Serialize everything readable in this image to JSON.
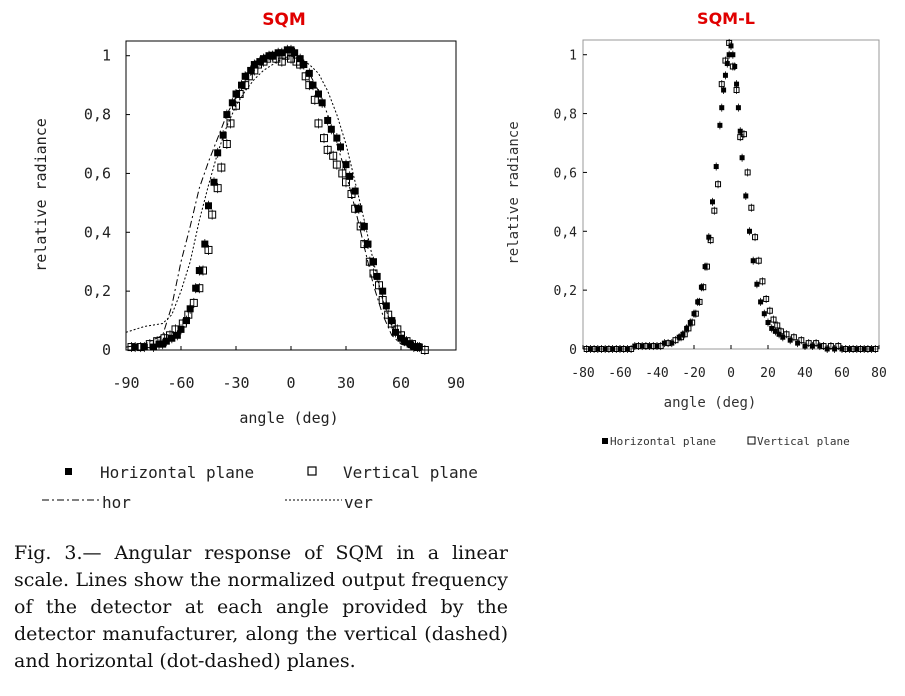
{
  "chart_data": [
    {
      "type": "scatter",
      "title": "SQM",
      "title_color": "#e00000",
      "xlabel": "angle (deg)",
      "ylabel": "relative radiance",
      "xlim": [
        -90,
        90
      ],
      "ylim": [
        0,
        1.05
      ],
      "grid": false,
      "xticks": [
        -90,
        -60,
        -30,
        0,
        30,
        60,
        90
      ],
      "xtick_labels": [
        "-90",
        "-60",
        "-30",
        "0",
        "30",
        "60",
        "90"
      ],
      "yticks": [
        0,
        0.2,
        0.4,
        0.6,
        0.8,
        1
      ],
      "ytick_labels": [
        "0",
        "0,2",
        "0,4",
        "0,6",
        "0,8",
        "1"
      ],
      "legend": [
        {
          "label": "Horizontal plane",
          "marker": "filled-square"
        },
        {
          "label": "Vertical plane",
          "marker": "open-square"
        },
        {
          "label": "hor",
          "line": "dot-dashed"
        },
        {
          "label": "ver",
          "line": "dotted"
        }
      ],
      "series": [
        {
          "name": "Horizontal plane",
          "marker": "filled-square",
          "x": [
            -85,
            -80,
            -75,
            -72,
            -70,
            -68,
            -65,
            -62,
            -60,
            -57,
            -55,
            -52,
            -50,
            -47,
            -45,
            -42,
            -40,
            -37,
            -35,
            -32,
            -30,
            -27,
            -25,
            -22,
            -20,
            -17,
            -15,
            -12,
            -10,
            -7,
            -5,
            -2,
            0,
            2,
            5,
            7,
            10,
            12,
            15,
            17,
            20,
            22,
            25,
            27,
            30,
            32,
            35,
            37,
            40,
            42,
            45,
            47,
            50,
            52,
            55,
            57,
            60,
            62,
            65,
            67,
            70
          ],
          "y": [
            0.01,
            0.01,
            0.01,
            0.02,
            0.02,
            0.03,
            0.04,
            0.05,
            0.07,
            0.1,
            0.14,
            0.21,
            0.27,
            0.36,
            0.49,
            0.57,
            0.67,
            0.73,
            0.8,
            0.84,
            0.87,
            0.9,
            0.93,
            0.95,
            0.97,
            0.98,
            0.99,
            1.0,
            1.0,
            1.01,
            1.01,
            1.02,
            1.02,
            1.01,
            0.99,
            0.97,
            0.94,
            0.9,
            0.87,
            0.84,
            0.78,
            0.75,
            0.72,
            0.69,
            0.63,
            0.59,
            0.54,
            0.48,
            0.42,
            0.36,
            0.3,
            0.25,
            0.2,
            0.15,
            0.1,
            0.06,
            0.04,
            0.03,
            0.02,
            0.01,
            0.01
          ]
        },
        {
          "name": "Vertical plane",
          "marker": "open-square",
          "x": [
            -87,
            -82,
            -77,
            -73,
            -69,
            -66,
            -63,
            -59,
            -56,
            -53,
            -50,
            -48,
            -45,
            -43,
            -40,
            -38,
            -35,
            -33,
            -30,
            -28,
            -25,
            -23,
            -20,
            -18,
            -15,
            -13,
            -10,
            -8,
            -5,
            -3,
            0,
            3,
            5,
            8,
            10,
            13,
            15,
            18,
            20,
            23,
            25,
            28,
            30,
            33,
            35,
            38,
            40,
            43,
            45,
            48,
            50,
            53,
            55,
            58,
            60,
            63,
            66,
            69,
            73
          ],
          "y": [
            0.01,
            0.01,
            0.02,
            0.03,
            0.04,
            0.05,
            0.07,
            0.09,
            0.12,
            0.16,
            0.21,
            0.27,
            0.34,
            0.46,
            0.55,
            0.62,
            0.7,
            0.77,
            0.83,
            0.87,
            0.9,
            0.93,
            0.95,
            0.97,
            0.98,
            0.99,
            1.0,
            0.99,
            0.98,
            1.0,
            0.99,
            0.98,
            0.97,
            0.93,
            0.9,
            0.85,
            0.77,
            0.72,
            0.68,
            0.66,
            0.63,
            0.6,
            0.57,
            0.53,
            0.48,
            0.42,
            0.36,
            0.3,
            0.26,
            0.22,
            0.17,
            0.12,
            0.09,
            0.07,
            0.05,
            0.03,
            0.02,
            0.01,
            0.0
          ]
        },
        {
          "name": "hor",
          "line": "dot-dashed",
          "x": [
            -90,
            -80,
            -70,
            -65,
            -60,
            -55,
            -50,
            -45,
            -40,
            -35,
            -30,
            -25,
            -20,
            -15,
            -10,
            -5,
            0,
            5,
            10,
            15,
            20,
            25,
            30,
            35,
            40,
            45,
            50,
            55,
            60,
            65,
            70,
            75
          ],
          "y": [
            0.01,
            0.02,
            0.05,
            0.15,
            0.3,
            0.42,
            0.55,
            0.64,
            0.72,
            0.8,
            0.86,
            0.91,
            0.95,
            0.98,
            1.0,
            1.0,
            1.0,
            0.98,
            0.94,
            0.88,
            0.8,
            0.7,
            0.6,
            0.48,
            0.35,
            0.22,
            0.12,
            0.05,
            0.02,
            0.01,
            0.0,
            0.0
          ]
        },
        {
          "name": "ver",
          "line": "dotted",
          "x": [
            -90,
            -80,
            -70,
            -65,
            -60,
            -55,
            -50,
            -45,
            -40,
            -35,
            -30,
            -25,
            -20,
            -15,
            -10,
            -5,
            0,
            5,
            10,
            15,
            20,
            25,
            30,
            35,
            40,
            45,
            50,
            55,
            60,
            65,
            70,
            75
          ],
          "y": [
            0.06,
            0.08,
            0.09,
            0.12,
            0.2,
            0.3,
            0.44,
            0.56,
            0.67,
            0.76,
            0.83,
            0.88,
            0.92,
            0.95,
            0.97,
            0.99,
            1.0,
            0.99,
            0.97,
            0.94,
            0.88,
            0.8,
            0.7,
            0.57,
            0.44,
            0.3,
            0.17,
            0.08,
            0.03,
            0.01,
            0.0,
            0.0
          ]
        }
      ]
    },
    {
      "type": "scatter",
      "title": "SQM-L",
      "title_color": "#e00000",
      "xlabel": "angle (deg)",
      "ylabel": "relative radiance",
      "xlim": [
        -80,
        80
      ],
      "ylim": [
        0,
        1.05
      ],
      "grid": false,
      "xticks": [
        -80,
        -60,
        -40,
        -20,
        0,
        20,
        40,
        60,
        80
      ],
      "xtick_labels": [
        "-80",
        "-60",
        "-40",
        "-20",
        "0",
        "20",
        "40",
        "60",
        "80"
      ],
      "yticks": [
        0,
        0.2,
        0.4,
        0.6,
        0.8,
        1
      ],
      "ytick_labels": [
        "0",
        "0,2",
        "0,4",
        "0,6",
        "0,8",
        "1"
      ],
      "legend": [
        {
          "label": "Horizontal plane",
          "marker": "filled-square"
        },
        {
          "label": "Vertical plane",
          "marker": "open-square"
        }
      ],
      "series": [
        {
          "name": "Horizontal plane",
          "marker": "filled-square",
          "x": [
            -76,
            -72,
            -68,
            -64,
            -60,
            -56,
            -52,
            -48,
            -44,
            -40,
            -36,
            -32,
            -28,
            -26,
            -24,
            -22,
            -20,
            -18,
            -16,
            -14,
            -12,
            -10,
            -8,
            -6,
            -5,
            -4,
            -3,
            -2,
            -1,
            0,
            1,
            2,
            3,
            4,
            5,
            6,
            8,
            10,
            12,
            14,
            16,
            18,
            20,
            22,
            24,
            26,
            28,
            32,
            36,
            40,
            44,
            48,
            52,
            56,
            60,
            64,
            68,
            72,
            76
          ],
          "y": [
            0.0,
            0.0,
            0.0,
            0.0,
            0.0,
            0.0,
            0.01,
            0.01,
            0.01,
            0.01,
            0.02,
            0.02,
            0.04,
            0.05,
            0.07,
            0.09,
            0.12,
            0.16,
            0.21,
            0.28,
            0.38,
            0.5,
            0.62,
            0.76,
            0.82,
            0.88,
            0.93,
            0.97,
            1.0,
            1.03,
            1.0,
            0.96,
            0.9,
            0.82,
            0.74,
            0.65,
            0.52,
            0.4,
            0.3,
            0.22,
            0.16,
            0.12,
            0.09,
            0.07,
            0.06,
            0.05,
            0.04,
            0.03,
            0.02,
            0.01,
            0.01,
            0.01,
            0.0,
            0.0,
            0.0,
            0.0,
            0.0,
            0.0,
            0.0
          ]
        },
        {
          "name": "Vertical plane",
          "marker": "open-square",
          "x": [
            -78,
            -74,
            -70,
            -66,
            -62,
            -58,
            -54,
            -50,
            -46,
            -42,
            -38,
            -34,
            -30,
            -27,
            -25,
            -23,
            -21,
            -19,
            -17,
            -15,
            -13,
            -11,
            -9,
            -7,
            -5,
            -3,
            -1,
            1,
            3,
            5,
            7,
            9,
            11,
            13,
            15,
            17,
            19,
            21,
            23,
            25,
            27,
            30,
            34,
            38,
            42,
            46,
            50,
            54,
            58,
            62,
            66,
            70,
            74,
            78
          ],
          "y": [
            0.0,
            0.0,
            0.0,
            0.0,
            0.0,
            0.0,
            0.0,
            0.01,
            0.01,
            0.01,
            0.01,
            0.02,
            0.03,
            0.04,
            0.05,
            0.07,
            0.09,
            0.12,
            0.16,
            0.21,
            0.28,
            0.37,
            0.47,
            0.56,
            0.9,
            0.98,
            1.04,
            0.96,
            0.88,
            0.72,
            0.73,
            0.6,
            0.48,
            0.38,
            0.3,
            0.23,
            0.17,
            0.13,
            0.1,
            0.08,
            0.06,
            0.05,
            0.04,
            0.03,
            0.02,
            0.02,
            0.01,
            0.01,
            0.01,
            0.0,
            0.0,
            0.0,
            0.0,
            0.0
          ]
        }
      ]
    }
  ],
  "legend_left": {
    "horizontal_label": "Horizontal plane",
    "vertical_label": "Vertical plane",
    "hor_label": "hor",
    "ver_label": "ver"
  },
  "legend_right": {
    "horizontal_label": "Horizontal plane",
    "vertical_label": "Vertical plane"
  },
  "caption": "Fig.   3.— Angular response of SQM in a linear scale. Lines show the normalized output frequency of the detector at each angle provided by the detector manufacturer, along the vertical (dashed) and horizontal (dot-dashed) planes."
}
